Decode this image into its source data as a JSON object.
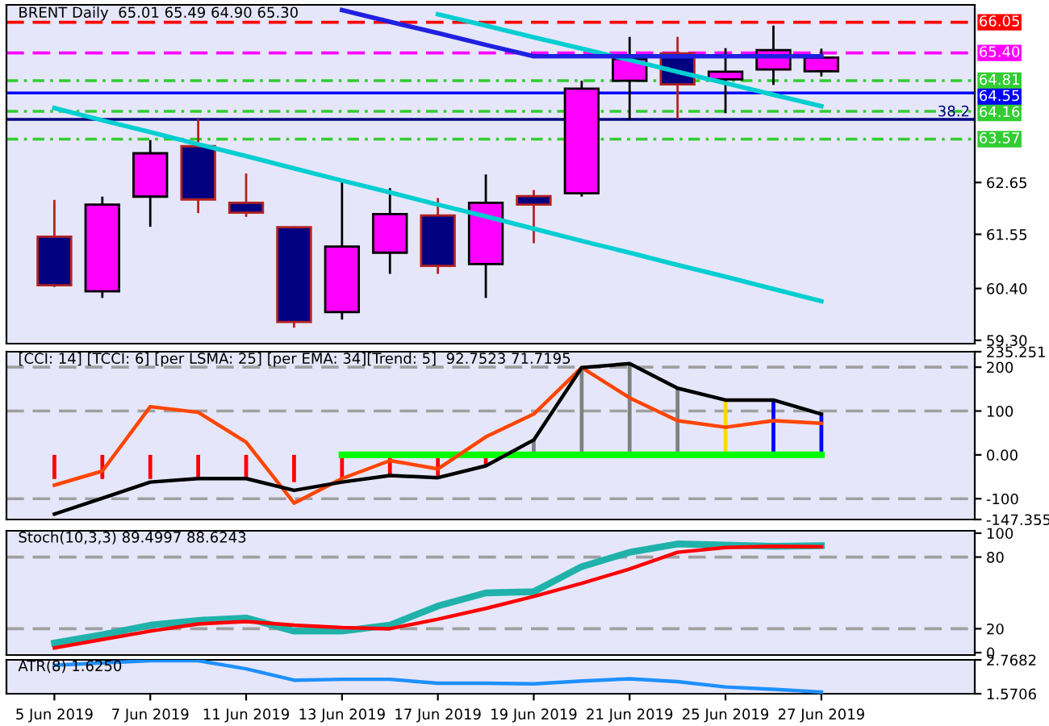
{
  "chart_data": [
    {
      "type": "candlestick",
      "title": "BRENT Daily  65.01 65.49 64.90 65.30",
      "categories": [
        null,
        null,
        null,
        null,
        null,
        null,
        null,
        null,
        null,
        null,
        null,
        null,
        null,
        null,
        null,
        null,
        null
      ],
      "ohlc": [
        [
          61.5,
          62.28,
          60.43,
          60.47
        ],
        [
          60.34,
          62.35,
          60.2,
          62.18
        ],
        [
          62.35,
          63.55,
          61.71,
          63.27
        ],
        [
          63.42,
          64.0,
          62.0,
          62.29
        ],
        [
          62.22,
          62.84,
          61.92,
          62.01
        ],
        [
          61.7,
          61.72,
          59.57,
          59.69
        ],
        [
          59.9,
          62.66,
          59.74,
          61.29
        ],
        [
          61.16,
          62.53,
          60.71,
          61.98
        ],
        [
          61.95,
          62.32,
          60.71,
          60.88
        ],
        [
          60.92,
          62.82,
          60.2,
          62.22
        ],
        [
          62.36,
          62.49,
          61.36,
          62.18
        ],
        [
          62.42,
          64.81,
          62.35,
          64.64
        ],
        [
          64.81,
          65.74,
          63.97,
          65.27
        ],
        [
          65.39,
          65.74,
          64.0,
          64.73
        ],
        [
          64.84,
          65.5,
          64.12,
          65.0
        ],
        [
          65.05,
          65.98,
          64.72,
          65.46
        ],
        [
          65.01,
          65.49,
          64.9,
          65.3
        ]
      ],
      "colors": [
        "#000080",
        "#ff00ff",
        "#ff00ff",
        "#000080",
        "#000080",
        "#000080",
        "#ff00ff",
        "#ff00ff",
        "#000080",
        "#ff00ff",
        "#000080",
        "#ff00ff",
        "#ff00ff",
        "#000080",
        "#ff00ff",
        "#ff00ff",
        "#ff00ff"
      ],
      "series": [
        {
          "type": "line",
          "values": [
            64.23,
            63.97,
            63.72,
            63.46,
            63.21,
            62.95,
            62.69,
            62.44,
            62.18,
            61.93,
            61.67,
            61.41,
            61.16,
            60.9,
            60.65,
            60.39,
            60.13
          ],
          "color": "#00ced1"
        },
        {
          "type": "line",
          "values": [
            null,
            null,
            null,
            null,
            null,
            null,
            null,
            null,
            66.22,
            65.98,
            65.73,
            65.49,
            65.25,
            65.0,
            64.76,
            64.51,
            64.27
          ],
          "color": "#00ced1"
        },
        {
          "type": "line",
          "values": [
            null,
            null,
            null,
            null,
            null,
            null,
            66.31,
            66.06,
            65.82,
            65.57,
            65.33,
            65.33,
            65.33,
            65.33,
            65.33,
            65.33,
            65.33
          ],
          "color": "#2020e0"
        }
      ],
      "ylim": [
        59.23,
        66.42
      ],
      "yticks": [
        {
          "value": 59.3,
          "label": "59.30"
        },
        {
          "value": 60.4,
          "label": "60.40"
        },
        61.55,
        62.65
      ],
      "ref_lines": [
        {
          "axis": "y",
          "value": 66.05,
          "label": "66.05",
          "color": "#ff0000",
          "line_style": "dashed"
        },
        {
          "axis": "y",
          "value": 65.4,
          "label": "65.40",
          "color": "#ff00ff",
          "line_style": "dashed"
        },
        {
          "axis": "y",
          "value": 64.81,
          "label": "64.81",
          "color": "#32cd32",
          "line_style": "dotted"
        },
        {
          "axis": "y",
          "value": 64.55,
          "label": "64.55",
          "color": "#0000ff",
          "line_style": "solid"
        },
        {
          "axis": "y",
          "value": 64.16,
          "label": "64.16",
          "color": "#32cd32",
          "line_style": "dotted"
        },
        {
          "axis": "y",
          "value": 63.99,
          "color": "#000080",
          "line_style": "solid"
        },
        {
          "axis": "y",
          "value": 63.57,
          "label": "63.57",
          "color": "#32cd32",
          "line_style": "dotted"
        }
      ],
      "annotations": [
        {
          "text": "38.2",
          "y": 63.99
        }
      ],
      "tick_labels": "y",
      "legend": false
    },
    {
      "type": "line",
      "title": "[CCI: 14] [TCCI: 6] [per LSMA: 25] [per EMA: 34][Trend: 5]  92.7523 71.7195",
      "categories": [
        null,
        null,
        null,
        null,
        null,
        null,
        null,
        null,
        null,
        null,
        null,
        null,
        null,
        null,
        null,
        null,
        null
      ],
      "series": [
        {
          "type": "bar",
          "values": [
            -55,
            -55,
            -55,
            -55,
            -55,
            -62,
            -55,
            -47,
            -52,
            -22,
            34,
            199,
            208,
            152,
            125,
            125,
            93
          ],
          "colors": [
            "#ff0000",
            "#ff0000",
            "#ff0000",
            "#ff0000",
            "#ff0000",
            "#ff0000",
            "#ff0000",
            "#ff0000",
            "#ff0000",
            "#ff0000",
            "#808080",
            "#808080",
            "#808080",
            "#808080",
            "#ffd700",
            "#0000ff",
            "#0000ff"
          ]
        },
        {
          "type": "line",
          "values": [
            null,
            null,
            null,
            null,
            null,
            null,
            0,
            0,
            0,
            0,
            0,
            0,
            0,
            0,
            0,
            0,
            0
          ],
          "color": "#00ff00"
        },
        {
          "type": "line",
          "values": [
            -69,
            -37,
            110,
            97,
            29,
            -110,
            -54,
            -13,
            -32,
            41,
            93,
            199,
            130,
            78,
            63,
            78,
            72
          ],
          "color": "#ff4500"
        },
        {
          "type": "line",
          "values": [
            -135,
            -99,
            -62,
            -54,
            -54,
            -81,
            -62,
            -47,
            -52,
            -25,
            34,
            199,
            208,
            152,
            125,
            125,
            93
          ],
          "color": "#000000"
        }
      ],
      "ylim": [
        -147.355,
        235.251
      ],
      "yticks": [
        235.251,
        200,
        100,
        {
          "value": 0,
          "label": "0.00"
        },
        -100,
        -147.355
      ],
      "ref_lines": [
        {
          "axis": "y",
          "value": 200,
          "color": "#a0a0a0",
          "line_style": "dashed"
        },
        {
          "axis": "y",
          "value": 100,
          "color": "#a0a0a0",
          "line_style": "dashed"
        },
        {
          "axis": "y",
          "value": -100,
          "color": "#a0a0a0",
          "line_style": "dashed"
        }
      ],
      "tick_labels": "y",
      "legend": false
    },
    {
      "type": "line",
      "title": "Stoch(10,3,3) 89.4997 88.6243",
      "categories": [
        null,
        null,
        null,
        null,
        null,
        null,
        null,
        null,
        null,
        null,
        null,
        null,
        null,
        null,
        null,
        null,
        null
      ],
      "series": [
        {
          "type": "line",
          "values": [
            8,
            15,
            23,
            27,
            29,
            18,
            18,
            23,
            39,
            50,
            51,
            72,
            84,
            91,
            90,
            89,
            89.5
          ],
          "color": "#20b2aa"
        },
        {
          "type": "line",
          "values": [
            4,
            11,
            18,
            24,
            26,
            23,
            21,
            20,
            28,
            37,
            47,
            58,
            70,
            84,
            88,
            89,
            88.6
          ],
          "color": "#ff0000"
        }
      ],
      "ylim": [
        -2,
        102
      ],
      "yticks": [
        100,
        80,
        20,
        0
      ],
      "ref_lines": [
        {
          "axis": "y",
          "value": 80,
          "color": "#a0a0a0",
          "line_style": "dashed"
        },
        {
          "axis": "y",
          "value": 20,
          "color": "#a0a0a0",
          "line_style": "dashed"
        }
      ],
      "tick_labels": "y",
      "legend": false
    },
    {
      "type": "line",
      "title": "ATR(8) 1.6250",
      "categories": [
        "5 Jun 2019",
        null,
        "7 Jun 2019",
        null,
        "11 Jun 2019",
        null,
        "13 Jun 2019",
        null,
        "17 Jun 2019",
        null,
        "19 Jun 2019",
        null,
        "21 Jun 2019",
        null,
        "25 Jun 2019",
        null,
        "27 Jun 2019"
      ],
      "series": [
        {
          "type": "line",
          "values": [
            2.58,
            2.66,
            2.74,
            2.74,
            2.45,
            2.05,
            2.08,
            2.08,
            1.94,
            1.94,
            1.92,
            2.02,
            2.1,
            2.0,
            1.81,
            1.73,
            1.63
          ],
          "color": "#1e90ff"
        }
      ],
      "ylim": [
        1.5706,
        2.7682
      ],
      "yticks": [
        2.7682,
        1.5706
      ],
      "legend": false
    }
  ]
}
